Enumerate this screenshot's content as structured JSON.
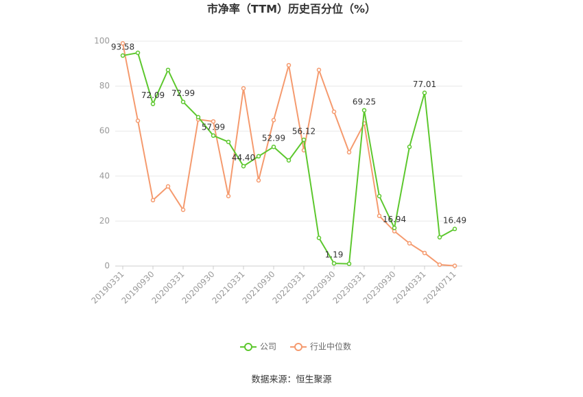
{
  "chart_data": {
    "type": "line",
    "title": "市净率（TTM）历史百分位（%）",
    "categories": [
      "20190331",
      null,
      "20190930",
      null,
      "20200331",
      null,
      "20200930",
      null,
      "20210331",
      null,
      "20210930",
      null,
      "20220331",
      null,
      "20220930",
      null,
      "20230331",
      null,
      "20230930",
      null,
      "20240331",
      null,
      "20240711"
    ],
    "series": [
      {
        "name": "公司",
        "color": "#5cc72d",
        "values": [
          93.58,
          94.8,
          72.09,
          87.2,
          72.99,
          66.2,
          57.99,
          55.2,
          44.4,
          48.8,
          52.99,
          47,
          56.12,
          12.5,
          1.19,
          1,
          69.25,
          31.1,
          16.94,
          53,
          77.01,
          12.8,
          16.49
        ],
        "value_labels": [
          "93.58",
          null,
          "72.09",
          null,
          "72.99",
          null,
          "57.99",
          null,
          "44.40",
          null,
          "52.99",
          null,
          "56.12",
          null,
          "1.19",
          null,
          "69.25",
          null,
          "16.94",
          null,
          "77.01",
          null,
          "16.49"
        ]
      },
      {
        "name": "行业中位数",
        "color": "#f59a6e",
        "values": [
          99,
          64.6,
          29.3,
          35.4,
          25,
          65.2,
          64.3,
          31.1,
          79,
          38.1,
          64.9,
          89.3,
          51.5,
          87.2,
          68.6,
          50.6,
          63.4,
          22.3,
          15.5,
          10.1,
          5.8,
          0.6,
          0.1
        ]
      }
    ],
    "ylim": [
      0,
      100
    ],
    "yticks": [
      0,
      20,
      40,
      60,
      80,
      100
    ],
    "grid": true,
    "legend": "bottom",
    "source": "数据来源：恒生聚源"
  }
}
